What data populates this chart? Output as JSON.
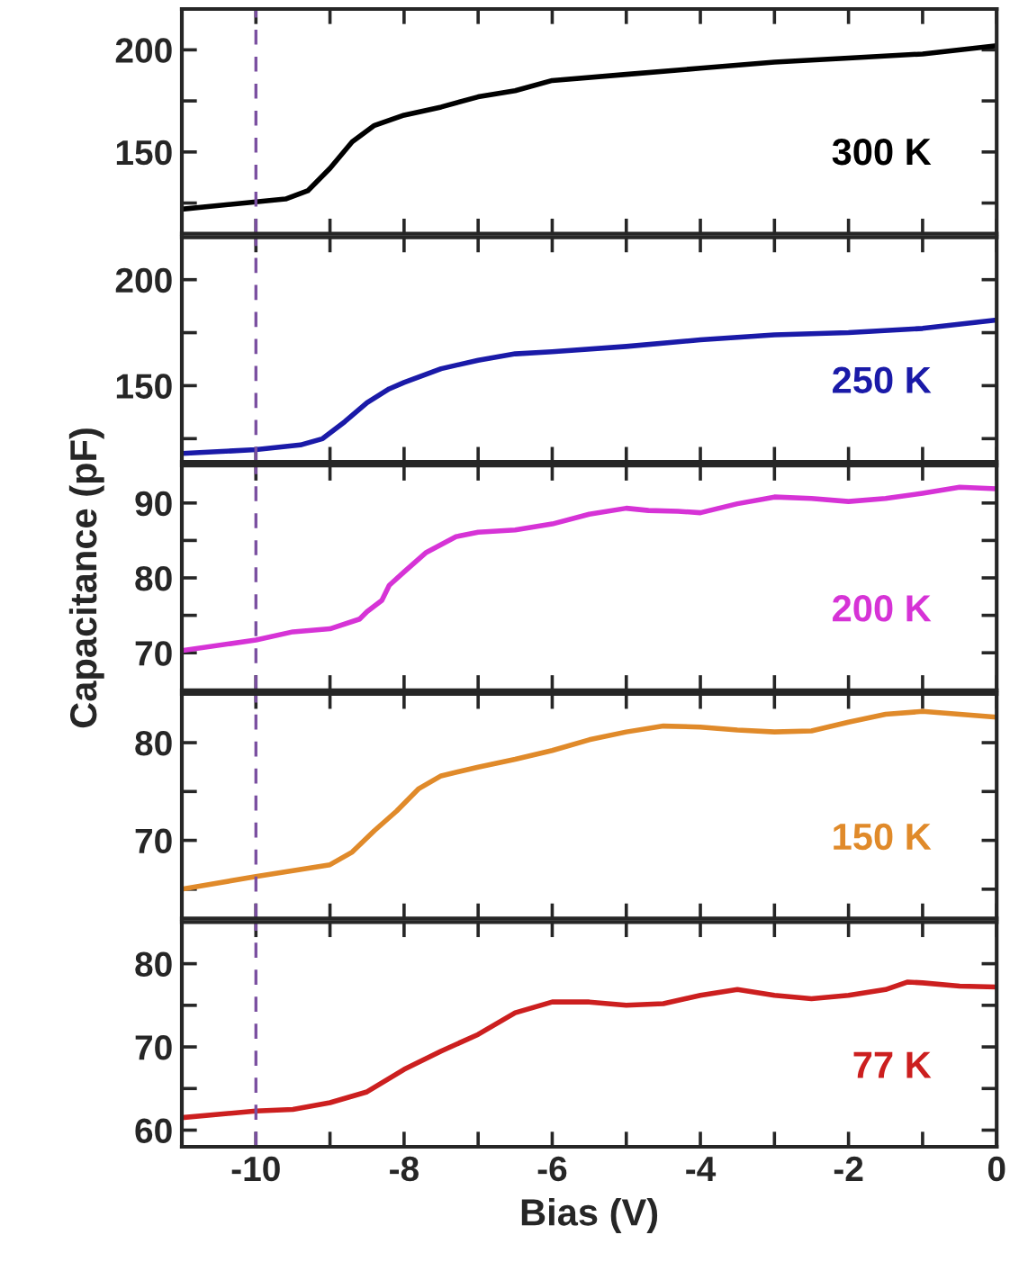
{
  "chart_data": [
    {
      "type": "line",
      "xlim": [
        -11,
        0
      ],
      "xticks": [
        {
          "value": -11,
          "label": null
        },
        -10,
        {
          "value": -9,
          "label": null
        },
        -8,
        {
          "value": -7,
          "label": null
        },
        -6,
        {
          "value": -5,
          "label": null
        },
        -4,
        {
          "value": -3,
          "label": null
        },
        -2,
        {
          "value": -1,
          "label": null
        },
        0
      ],
      "ylim": [
        110,
        220
      ],
      "yticks": [
        {
          "value": 125,
          "label": null
        },
        150,
        {
          "value": 175,
          "label": null
        },
        200
      ],
      "tick_labels": "y",
      "grid": false,
      "legend": false,
      "line_style": "solid",
      "marker": "none",
      "ref_lines": [
        {
          "axis": "x",
          "value": -10,
          "color": "#7a4fa0",
          "line_style": "dashed"
        }
      ],
      "series": [
        {
          "name": "300 K",
          "color": "#000000",
          "x": [
            -11,
            -10,
            -9.6,
            -9.3,
            -9,
            -8.7,
            -8.4,
            -8,
            -7.5,
            -7,
            -6.5,
            -6,
            -5,
            -4,
            -3,
            -2,
            -1,
            0
          ],
          "values": [
            122,
            125.6,
            127,
            131,
            142,
            155,
            163,
            168,
            172,
            177,
            180,
            185,
            188,
            191,
            194,
            196,
            198,
            202
          ]
        }
      ]
    },
    {
      "type": "line",
      "xlim": [
        -11,
        0
      ],
      "xticks": [
        {
          "value": -11,
          "label": null
        },
        -10,
        {
          "value": -9,
          "label": null
        },
        -8,
        {
          "value": -7,
          "label": null
        },
        -6,
        {
          "value": -5,
          "label": null
        },
        -4,
        {
          "value": -3,
          "label": null
        },
        -2,
        {
          "value": -1,
          "label": null
        },
        0
      ],
      "ylim": [
        114,
        220
      ],
      "yticks": [
        {
          "value": 125,
          "label": null
        },
        150,
        {
          "value": 175,
          "label": null
        },
        200
      ],
      "tick_labels": "y",
      "grid": false,
      "legend": false,
      "line_style": "solid",
      "marker": "none",
      "ref_lines": [
        {
          "axis": "x",
          "value": -10,
          "color": "#7a4fa0",
          "line_style": "dashed"
        }
      ],
      "series": [
        {
          "name": "250 K",
          "color": "#1a1aa8",
          "x": [
            -11,
            -10,
            -9.4,
            -9.1,
            -8.8,
            -8.5,
            -8.2,
            -8,
            -7.5,
            -7,
            -6.5,
            -6,
            -5,
            -4,
            -3,
            -2,
            -1,
            0
          ],
          "values": [
            118,
            119.8,
            122,
            125,
            133,
            142,
            148.5,
            151.5,
            158,
            162,
            165,
            166,
            168.5,
            171.6,
            174,
            175,
            177,
            181
          ]
        }
      ]
    },
    {
      "type": "line",
      "ylabel": "Capacitance (pF)",
      "xlim": [
        -11,
        0
      ],
      "xticks": [
        {
          "value": -11,
          "label": null
        },
        -10,
        {
          "value": -9,
          "label": null
        },
        -8,
        {
          "value": -7,
          "label": null
        },
        -6,
        {
          "value": -5,
          "label": null
        },
        -4,
        {
          "value": -3,
          "label": null
        },
        -2,
        {
          "value": -1,
          "label": null
        },
        0
      ],
      "ylim": [
        65,
        95
      ],
      "yticks": [
        70,
        {
          "value": 75,
          "label": null
        },
        80,
        {
          "value": 85,
          "label": null
        },
        90
      ],
      "tick_labels": "y",
      "grid": false,
      "legend": false,
      "line_style": "solid",
      "marker": "none",
      "ref_lines": [
        {
          "axis": "x",
          "value": -10,
          "color": "#7a4fa0",
          "line_style": "dashed"
        }
      ],
      "series": [
        {
          "name": "200 K",
          "color": "#d633d6",
          "x": [
            -11,
            -10,
            -9.5,
            -9,
            -8.6,
            -8.5,
            -8.3,
            -8.2,
            -8,
            -7.7,
            -7.3,
            -7,
            -6.5,
            -6,
            -5.5,
            -5,
            -4.7,
            -4.3,
            -4,
            -3.5,
            -3,
            -2.5,
            -2,
            -1.5,
            -1,
            -0.5,
            0
          ],
          "values": [
            70.3,
            71.7,
            72.8,
            73.2,
            74.5,
            75.5,
            77,
            79,
            80.8,
            83.4,
            85.5,
            86.1,
            86.4,
            87.2,
            88.5,
            89.3,
            89,
            88.9,
            88.7,
            89.9,
            90.8,
            90.6,
            90.2,
            90.6,
            91.3,
            92.1,
            91.9
          ]
        }
      ]
    },
    {
      "type": "line",
      "xlim": [
        -11,
        0
      ],
      "xticks": [
        {
          "value": -11,
          "label": null
        },
        -10,
        {
          "value": -9,
          "label": null
        },
        -8,
        {
          "value": -7,
          "label": null
        },
        -6,
        {
          "value": -5,
          "label": null
        },
        -4,
        {
          "value": -3,
          "label": null
        },
        -2,
        {
          "value": -1,
          "label": null
        },
        0
      ],
      "ylim": [
        62,
        85
      ],
      "yticks": [
        {
          "value": 65,
          "label": null
        },
        70,
        {
          "value": 75,
          "label": null
        },
        80
      ],
      "tick_labels": "y",
      "grid": false,
      "legend": false,
      "line_style": "solid",
      "marker": "none",
      "ref_lines": [
        {
          "axis": "x",
          "value": -10,
          "color": "#7a4fa0",
          "line_style": "dashed"
        }
      ],
      "series": [
        {
          "name": "150 K",
          "color": "#e08a2a",
          "x": [
            -11,
            -10,
            -9.5,
            -9,
            -8.7,
            -8.4,
            -8.1,
            -7.8,
            -7.5,
            -7,
            -6.5,
            -6,
            -5.5,
            -5,
            -4.5,
            -4,
            -3.5,
            -3,
            -2.5,
            -2,
            -1.5,
            -1,
            -0.5,
            0
          ],
          "values": [
            65,
            66.3,
            66.9,
            67.5,
            68.8,
            71,
            73,
            75.3,
            76.6,
            77.5,
            78.3,
            79.2,
            80.3,
            81.1,
            81.7,
            81.6,
            81.3,
            81.1,
            81.2,
            82.1,
            82.9,
            83.2,
            82.9,
            82.6
          ]
        }
      ]
    },
    {
      "type": "line",
      "xlabel": "Bias (V)",
      "xlim": [
        -11,
        0
      ],
      "xticks": [
        {
          "value": -11,
          "label": null
        },
        -10,
        {
          "value": -9,
          "label": null
        },
        -8,
        {
          "value": -7,
          "label": null
        },
        -6,
        {
          "value": -5,
          "label": null
        },
        -4,
        {
          "value": -3,
          "label": null
        },
        -2,
        {
          "value": -1,
          "label": null
        },
        0
      ],
      "ylim": [
        58,
        85
      ],
      "yticks": [
        60,
        {
          "value": 65,
          "label": null
        },
        70,
        {
          "value": 75,
          "label": null
        },
        80
      ],
      "grid": false,
      "legend": false,
      "line_style": "solid",
      "marker": "none",
      "ref_lines": [
        {
          "axis": "x",
          "value": -10,
          "color": "#7a4fa0",
          "line_style": "dashed"
        }
      ],
      "series": [
        {
          "name": "77 K",
          "color": "#cc1f1f",
          "x": [
            -11,
            -10,
            -9.5,
            -9,
            -8.5,
            -8,
            -7.5,
            -7,
            -6.5,
            -6,
            -5.5,
            -5,
            -4.5,
            -4,
            -3.5,
            -3,
            -2.5,
            -2,
            -1.5,
            -1.2,
            -1,
            -0.5,
            0
          ],
          "values": [
            61.5,
            62.3,
            62.5,
            63.3,
            64.6,
            67.3,
            69.5,
            71.5,
            74.1,
            75.4,
            75.4,
            75,
            75.2,
            76.2,
            76.9,
            76.2,
            75.8,
            76.2,
            76.9,
            77.8,
            77.7,
            77.3,
            77.2
          ]
        }
      ]
    }
  ]
}
